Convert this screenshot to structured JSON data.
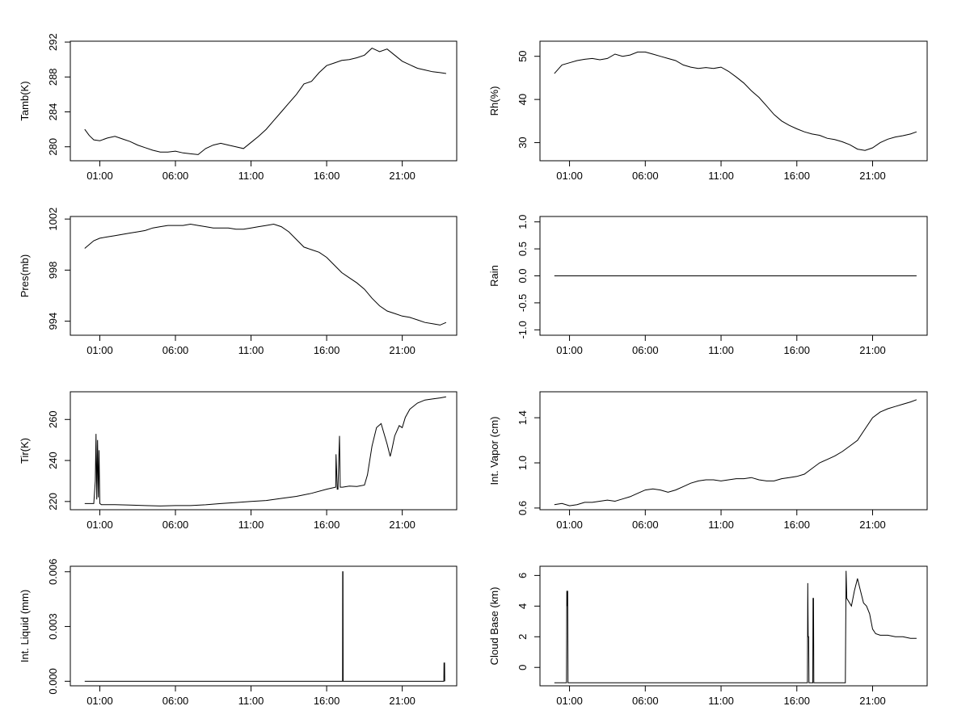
{
  "chart_data": [
    {
      "type": "line",
      "ylabel": "Tamb(K)",
      "xlabel": "",
      "xticks": [
        {
          "x": 1,
          "label": "01:00"
        },
        {
          "x": 6,
          "label": "06:00"
        },
        {
          "x": 11,
          "label": "11:00"
        },
        {
          "x": 16,
          "label": "16:00"
        },
        {
          "x": 21,
          "label": "21:00"
        }
      ],
      "yticks": [
        {
          "y": 280,
          "label": "280"
        },
        {
          "y": 284,
          "label": "284"
        },
        {
          "y": 288,
          "label": "288"
        },
        {
          "y": 292,
          "label": "292"
        }
      ],
      "xlim": [
        -0.95,
        24.6
      ],
      "ylim": [
        278.4,
        292.1
      ],
      "series": [
        {
          "x": [
            0,
            0.3,
            0.6,
            1,
            1.5,
            2,
            2.5,
            3,
            3.5,
            4,
            4.5,
            5,
            5.5,
            6,
            6.5,
            7,
            7.5,
            8,
            8.5,
            9,
            9.5,
            10,
            10.5,
            11,
            11.5,
            12,
            12.5,
            13,
            13.5,
            14,
            14.5,
            15,
            15.5,
            16,
            16.5,
            17,
            17.5,
            18,
            18.5,
            19,
            19.5,
            20,
            20.5,
            21,
            21.5,
            22,
            22.5,
            23,
            23.5,
            23.9
          ],
          "y": [
            282,
            281.3,
            280.8,
            280.7,
            281,
            281.2,
            280.9,
            280.6,
            280.2,
            279.9,
            279.6,
            279.4,
            279.4,
            279.5,
            279.3,
            279.2,
            279.1,
            279.8,
            280.2,
            280.4,
            280.2,
            280,
            279.8,
            280.5,
            281.2,
            282,
            283,
            284,
            285,
            286,
            287.2,
            287.5,
            288.5,
            289.3,
            289.6,
            289.9,
            290,
            290.2,
            290.5,
            291.3,
            290.9,
            291.2,
            290.5,
            289.8,
            289.4,
            289,
            288.8,
            288.6,
            288.5,
            288.4
          ]
        }
      ]
    },
    {
      "type": "line",
      "ylabel": "Rh(%)",
      "xlabel": "",
      "xticks": [
        {
          "x": 1,
          "label": "01:00"
        },
        {
          "x": 6,
          "label": "06:00"
        },
        {
          "x": 11,
          "label": "11:00"
        },
        {
          "x": 16,
          "label": "16:00"
        },
        {
          "x": 21,
          "label": "21:00"
        }
      ],
      "yticks": [
        {
          "y": 30,
          "label": "30"
        },
        {
          "y": 40,
          "label": "40"
        },
        {
          "y": 50,
          "label": "50"
        }
      ],
      "xlim": [
        -0.95,
        24.6
      ],
      "ylim": [
        25.8,
        53.5
      ],
      "series": [
        {
          "x": [
            0,
            0.5,
            1,
            1.5,
            2,
            2.5,
            3,
            3.5,
            4,
            4.5,
            5,
            5.5,
            6,
            6.5,
            7,
            7.5,
            8,
            8.5,
            9,
            9.5,
            10,
            10.5,
            11,
            11.5,
            12,
            12.5,
            13,
            13.5,
            14,
            14.5,
            15,
            15.5,
            16,
            16.5,
            17,
            17.5,
            18,
            18.5,
            19,
            19.5,
            20,
            20.5,
            21,
            21.5,
            22,
            22.5,
            23,
            23.5,
            23.9
          ],
          "y": [
            46,
            48,
            48.5,
            49,
            49.3,
            49.5,
            49.2,
            49.5,
            50.5,
            50,
            50.3,
            51,
            51,
            50.5,
            50,
            49.5,
            49,
            48,
            47.5,
            47.2,
            47.4,
            47.2,
            47.5,
            46.5,
            45.2,
            43.8,
            42,
            40.5,
            38.5,
            36.5,
            35,
            34,
            33.2,
            32.5,
            32,
            31.7,
            31,
            30.7,
            30.2,
            29.5,
            28.5,
            28.2,
            28.8,
            30,
            30.8,
            31.3,
            31.6,
            32,
            32.5
          ]
        }
      ]
    },
    {
      "type": "line",
      "ylabel": "Pres(mb)",
      "xlabel": "",
      "xticks": [
        {
          "x": 1,
          "label": "01:00"
        },
        {
          "x": 6,
          "label": "06:00"
        },
        {
          "x": 11,
          "label": "11:00"
        },
        {
          "x": 16,
          "label": "16:00"
        },
        {
          "x": 21,
          "label": "21:00"
        }
      ],
      "yticks": [
        {
          "y": 994,
          "label": "994"
        },
        {
          "y": 998,
          "label": "998"
        },
        {
          "y": 1002,
          "label": "1002"
        }
      ],
      "xlim": [
        -0.95,
        24.6
      ],
      "ylim": [
        992.9,
        1002.2
      ],
      "series": [
        {
          "x": [
            0,
            0.3,
            0.6,
            1,
            1.5,
            2,
            2.5,
            3,
            3.5,
            4,
            4.5,
            5,
            5.5,
            6,
            6.5,
            7,
            7.5,
            8,
            8.5,
            9,
            9.5,
            10,
            10.5,
            11,
            11.5,
            12,
            12.5,
            13,
            13.5,
            14,
            14.5,
            15,
            15.5,
            16,
            16.5,
            17,
            17.5,
            18,
            18.5,
            19,
            19.5,
            20,
            20.5,
            21,
            21.5,
            22,
            22.5,
            23,
            23.5,
            23.9
          ],
          "y": [
            999.7,
            1000,
            1000.3,
            1000.5,
            1000.6,
            1000.7,
            1000.8,
            1000.9,
            1001,
            1001.1,
            1001.3,
            1001.4,
            1001.5,
            1001.5,
            1001.5,
            1001.6,
            1001.5,
            1001.4,
            1001.3,
            1001.3,
            1001.3,
            1001.2,
            1001.2,
            1001.3,
            1001.4,
            1001.5,
            1001.6,
            1001.4,
            1001,
            1000.4,
            999.8,
            999.6,
            999.4,
            999,
            998.4,
            997.8,
            997.4,
            997,
            996.5,
            995.8,
            995.2,
            994.8,
            994.6,
            994.4,
            994.3,
            994.1,
            993.9,
            993.8,
            993.7,
            993.9
          ]
        }
      ]
    },
    {
      "type": "line",
      "ylabel": "Rain",
      "xlabel": "",
      "xticks": [
        {
          "x": 1,
          "label": "01:00"
        },
        {
          "x": 6,
          "label": "06:00"
        },
        {
          "x": 11,
          "label": "11:00"
        },
        {
          "x": 16,
          "label": "16:00"
        },
        {
          "x": 21,
          "label": "21:00"
        }
      ],
      "yticks": [
        {
          "y": -1,
          "label": "-1.0"
        },
        {
          "y": -0.5,
          "label": "-0.5"
        },
        {
          "y": 0,
          "label": "0.0"
        },
        {
          "y": 0.5,
          "label": "0.5"
        },
        {
          "y": 1,
          "label": "1.0"
        }
      ],
      "xlim": [
        -0.95,
        24.6
      ],
      "ylim": [
        -1.1,
        1.1
      ],
      "series": [
        {
          "x": [
            0,
            23.9
          ],
          "y": [
            0,
            0
          ]
        }
      ]
    },
    {
      "type": "line",
      "ylabel": "Tir(K)",
      "xlabel": "",
      "xticks": [
        {
          "x": 1,
          "label": "01:00"
        },
        {
          "x": 6,
          "label": "06:00"
        },
        {
          "x": 11,
          "label": "11:00"
        },
        {
          "x": 16,
          "label": "16:00"
        },
        {
          "x": 21,
          "label": "21:00"
        }
      ],
      "yticks": [
        {
          "y": 220,
          "label": "220"
        },
        {
          "y": 240,
          "label": "240"
        },
        {
          "y": 260,
          "label": "260"
        }
      ],
      "xlim": [
        -0.95,
        24.6
      ],
      "ylim": [
        216,
        273.5
      ],
      "series": [
        {
          "x": [
            0,
            0.6,
            0.7,
            0.75,
            0.8,
            0.85,
            0.9,
            0.95,
            1,
            1.1,
            1.5,
            2,
            3,
            4,
            5,
            6,
            7,
            8,
            9,
            10,
            11,
            12,
            13,
            14,
            15,
            16,
            16.6,
            16.62,
            16.7,
            16.75,
            16.85,
            16.9,
            16.95,
            17.05,
            17.5,
            18,
            18.5,
            18.7,
            19,
            19.3,
            19.6,
            19.8,
            20,
            20.2,
            20.3,
            20.5,
            20.8,
            21,
            21.2,
            21.5,
            22,
            22.5,
            23,
            23.5,
            23.9
          ],
          "y": [
            219,
            219,
            230,
            253,
            221,
            250,
            222,
            245,
            219,
            218.5,
            218.5,
            218.5,
            218.3,
            218,
            217.8,
            218,
            218,
            218.4,
            219,
            219.5,
            220,
            220.5,
            221.5,
            222.5,
            224,
            226,
            227,
            243,
            226,
            226,
            252,
            227,
            227,
            227,
            227.5,
            227.3,
            228,
            233,
            247,
            256,
            258,
            253,
            248,
            242,
            245,
            252,
            257,
            256,
            261,
            265,
            268,
            269.5,
            270,
            270.5,
            271
          ]
        }
      ]
    },
    {
      "type": "line",
      "ylabel": "Int. Vapor (cm)",
      "xlabel": "",
      "xticks": [
        {
          "x": 1,
          "label": "01:00"
        },
        {
          "x": 6,
          "label": "06:00"
        },
        {
          "x": 11,
          "label": "11:00"
        },
        {
          "x": 16,
          "label": "16:00"
        },
        {
          "x": 21,
          "label": "21:00"
        }
      ],
      "yticks": [
        {
          "y": 0.6,
          "label": "0.6"
        },
        {
          "y": 1,
          "label": "1.0"
        },
        {
          "y": 1.4,
          "label": "1.4"
        }
      ],
      "xlim": [
        -0.95,
        24.6
      ],
      "ylim": [
        0.585,
        1.63
      ],
      "series": [
        {
          "x": [
            0,
            0.5,
            1,
            1.5,
            2,
            2.5,
            3,
            3.5,
            4,
            4.5,
            5,
            5.5,
            6,
            6.5,
            7,
            7.5,
            8,
            8.5,
            9,
            9.5,
            10,
            10.5,
            11,
            11.5,
            12,
            12.5,
            13,
            13.5,
            14,
            14.5,
            15,
            15.5,
            16,
            16.5,
            17,
            17.5,
            18,
            18.5,
            19,
            19.5,
            20,
            20.5,
            21,
            21.5,
            22,
            22.5,
            23,
            23.5,
            23.9
          ],
          "y": [
            0.63,
            0.64,
            0.62,
            0.63,
            0.65,
            0.65,
            0.66,
            0.67,
            0.66,
            0.68,
            0.7,
            0.73,
            0.76,
            0.77,
            0.76,
            0.74,
            0.76,
            0.79,
            0.82,
            0.84,
            0.85,
            0.85,
            0.84,
            0.85,
            0.86,
            0.86,
            0.87,
            0.85,
            0.84,
            0.84,
            0.86,
            0.87,
            0.88,
            0.9,
            0.95,
            1,
            1.03,
            1.06,
            1.1,
            1.15,
            1.2,
            1.3,
            1.4,
            1.45,
            1.48,
            1.5,
            1.52,
            1.54,
            1.56
          ]
        }
      ]
    },
    {
      "type": "line",
      "ylabel": "Int. Liquid (mm)",
      "xlabel": "",
      "xticks": [
        {
          "x": 1,
          "label": "01:00"
        },
        {
          "x": 6,
          "label": "06:00"
        },
        {
          "x": 11,
          "label": "11:00"
        },
        {
          "x": 16,
          "label": "16:00"
        },
        {
          "x": 21,
          "label": "21:00"
        }
      ],
      "yticks": [
        {
          "y": 0,
          "label": "0.000"
        },
        {
          "y": 0.003,
          "label": "0.003"
        },
        {
          "y": 0.006,
          "label": "0.006"
        }
      ],
      "xlim": [
        -0.95,
        24.6
      ],
      "ylim": [
        -0.00025,
        0.0063
      ],
      "series": [
        {
          "x": [
            0,
            17.05,
            17.06,
            17.08,
            17.09,
            23.75,
            23.76,
            23.8,
            23.81
          ],
          "y": [
            0,
            0,
            0.006,
            0.006,
            0,
            0,
            0.001,
            0.001,
            0
          ]
        }
      ]
    },
    {
      "type": "line",
      "ylabel": "Cloud Base (km)",
      "xlabel": "",
      "xticks": [
        {
          "x": 1,
          "label": "01:00"
        },
        {
          "x": 6,
          "label": "06:00"
        },
        {
          "x": 11,
          "label": "11:00"
        },
        {
          "x": 16,
          "label": "16:00"
        },
        {
          "x": 21,
          "label": "21:00"
        }
      ],
      "yticks": [
        {
          "y": 0,
          "label": "0"
        },
        {
          "y": 2,
          "label": "2"
        },
        {
          "y": 4,
          "label": "4"
        },
        {
          "y": 6,
          "label": "6"
        }
      ],
      "xlim": [
        -0.95,
        24.6
      ],
      "ylim": [
        -1.2,
        6.6
      ],
      "series": [
        {
          "x": [
            0,
            0.8,
            0.82,
            0.85,
            0.88,
            0.9,
            16.7,
            16.72,
            16.75,
            16.78,
            16.8,
            17.05,
            17.07,
            17.1,
            17.12,
            19.2,
            19.25,
            19.3,
            19.6,
            19.8,
            20,
            20.2,
            20.4,
            20.6,
            20.8,
            21,
            21.2,
            21.5,
            22,
            22.5,
            23,
            23.5,
            23.9
          ],
          "y": [
            -1,
            -1,
            5,
            4,
            5,
            -1,
            -1,
            5.5,
            2,
            2,
            -1,
            -1,
            4.5,
            4.5,
            -1,
            -1,
            6.3,
            4.5,
            4,
            5,
            5.8,
            5,
            4.2,
            4,
            3.5,
            2.5,
            2.2,
            2.1,
            2.1,
            2,
            2,
            1.9,
            1.9
          ]
        }
      ]
    }
  ]
}
